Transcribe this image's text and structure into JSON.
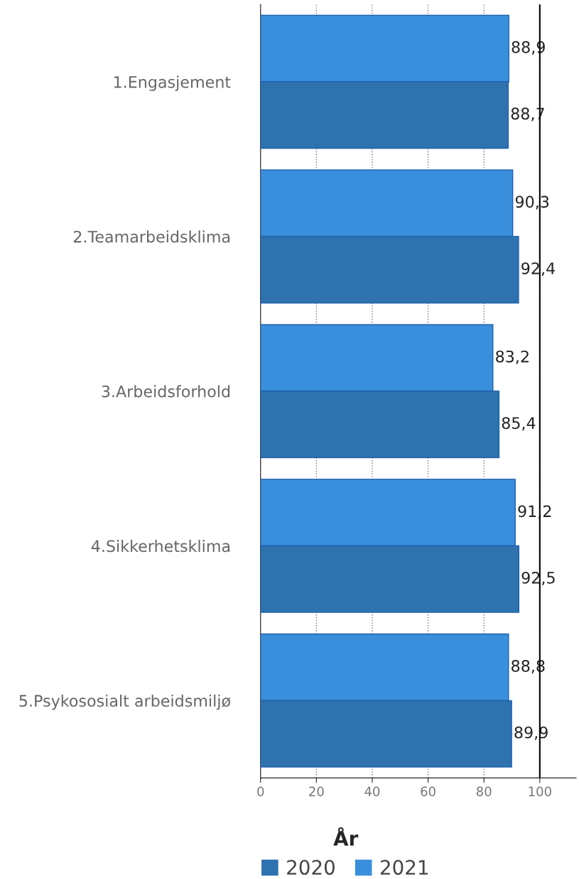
{
  "chart_data": {
    "type": "bar",
    "orientation": "horizontal",
    "categories": [
      "1.Engasjement",
      "2.Teamarbeidsklima",
      "3.Arbeidsforhold",
      "4.Sikkerhetsklima",
      "5.Psykososialt arbeidsmiljø"
    ],
    "series": [
      {
        "name": "2021",
        "color": "#3a8fdc",
        "values": [
          88.9,
          90.3,
          83.2,
          91.2,
          88.8
        ],
        "value_labels": [
          "88,9",
          "90,3",
          "83,2",
          "91,2",
          "88,8"
        ]
      },
      {
        "name": "2020",
        "color": "#2e72b0",
        "values": [
          88.7,
          92.4,
          85.4,
          92.5,
          89.9
        ],
        "value_labels": [
          "88,7",
          "92,4",
          "85,4",
          "92,5",
          "89,9"
        ]
      }
    ],
    "xlim": [
      0,
      113
    ],
    "xticks": [
      0,
      20,
      40,
      60,
      80,
      100
    ],
    "ref_lines": [
      {
        "axis": "x",
        "value": 100,
        "color": "#000000"
      }
    ],
    "grid": "x",
    "legend": "bottom",
    "legend_title": "År"
  }
}
